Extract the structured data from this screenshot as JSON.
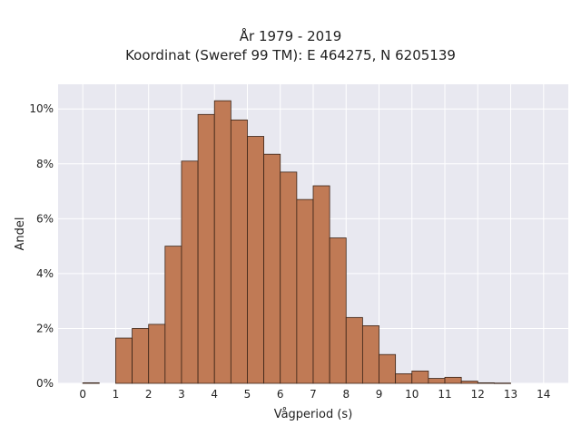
{
  "chart_data": {
    "type": "bar",
    "title_line1": "År 1979 - 2019",
    "title_line2": "Koordinat (Sweref 99 TM): E 464275, N 6205139",
    "xlabel": "Vågperiod (s)",
    "ylabel": "Andel",
    "xlim": [
      -0.75,
      14.75
    ],
    "ylim": [
      0,
      10.9
    ],
    "x_ticks": [
      "0",
      "1",
      "2",
      "3",
      "4",
      "5",
      "6",
      "7",
      "8",
      "9",
      "10",
      "11",
      "12",
      "13",
      "14"
    ],
    "y_ticks": [
      {
        "value": 0,
        "label": "0%"
      },
      {
        "value": 2,
        "label": "2%"
      },
      {
        "value": 4,
        "label": "4%"
      },
      {
        "value": 6,
        "label": "6%"
      },
      {
        "value": 8,
        "label": "8%"
      },
      {
        "value": 10,
        "label": "10%"
      }
    ],
    "bin_width": 0.5,
    "bars": [
      {
        "x": 0.0,
        "value": 0.02
      },
      {
        "x": 1.0,
        "value": 1.65
      },
      {
        "x": 1.5,
        "value": 2.0
      },
      {
        "x": 2.0,
        "value": 2.15
      },
      {
        "x": 2.5,
        "value": 5.0
      },
      {
        "x": 3.0,
        "value": 8.1
      },
      {
        "x": 3.5,
        "value": 9.8
      },
      {
        "x": 4.0,
        "value": 10.3
      },
      {
        "x": 4.5,
        "value": 9.6
      },
      {
        "x": 5.0,
        "value": 9.0
      },
      {
        "x": 5.5,
        "value": 8.35
      },
      {
        "x": 6.0,
        "value": 7.7
      },
      {
        "x": 6.5,
        "value": 6.7
      },
      {
        "x": 7.0,
        "value": 7.2
      },
      {
        "x": 7.5,
        "value": 5.3
      },
      {
        "x": 8.0,
        "value": 2.4
      },
      {
        "x": 8.5,
        "value": 2.1
      },
      {
        "x": 9.0,
        "value": 1.05
      },
      {
        "x": 9.5,
        "value": 0.35
      },
      {
        "x": 10.0,
        "value": 0.45
      },
      {
        "x": 10.5,
        "value": 0.18
      },
      {
        "x": 11.0,
        "value": 0.22
      },
      {
        "x": 11.5,
        "value": 0.08
      },
      {
        "x": 12.0,
        "value": 0.02
      },
      {
        "x": 12.5,
        "value": 0.01
      }
    ],
    "grid": true,
    "colors": {
      "bar_fill": "#c07a55",
      "bar_stroke": "#3a2418",
      "plot_bg": "#e8e8f0",
      "grid": "#ffffff"
    }
  }
}
